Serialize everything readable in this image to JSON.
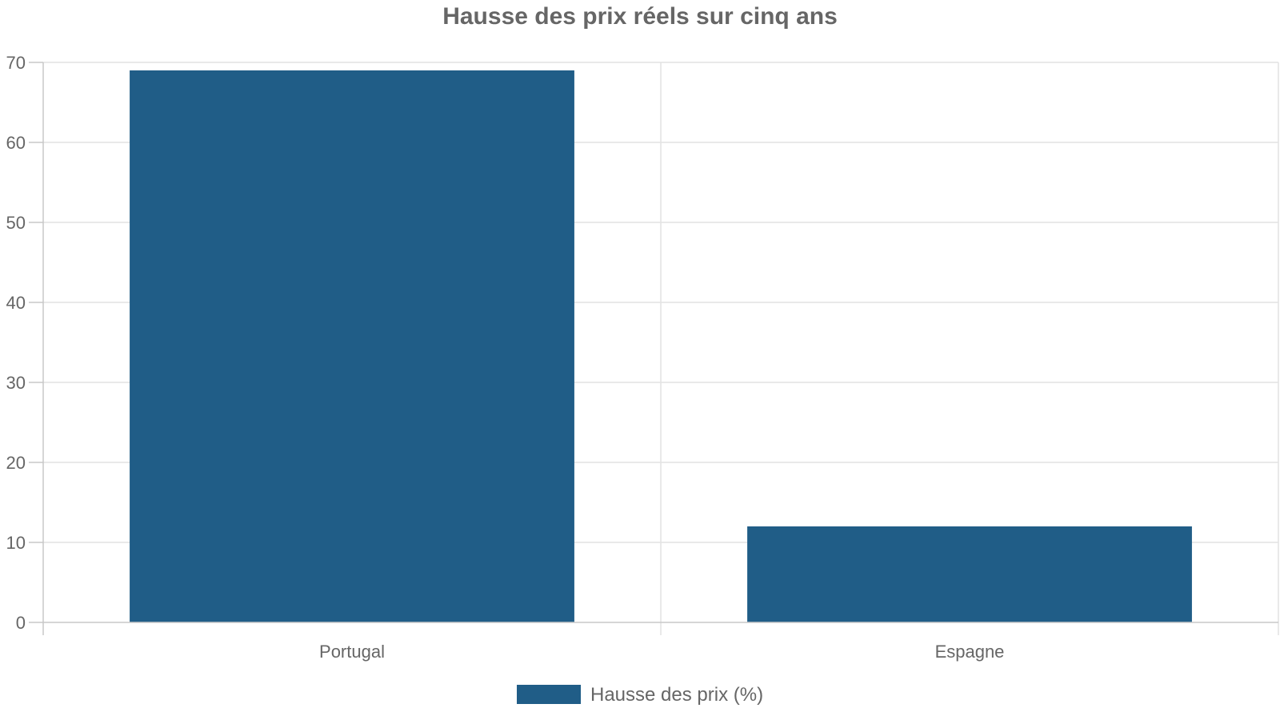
{
  "chart_data": {
    "type": "bar",
    "title": "Hausse des prix réels sur cinq ans",
    "categories": [
      "Portugal",
      "Espagne"
    ],
    "series": [
      {
        "name": "Hausse des prix (%)",
        "values": [
          69,
          12
        ],
        "color": "#205d87"
      }
    ],
    "ylim": [
      0,
      70
    ],
    "yticks": [
      0,
      10,
      20,
      30,
      40,
      50,
      60,
      70
    ],
    "grid": true,
    "legend_position": "bottom-center"
  }
}
